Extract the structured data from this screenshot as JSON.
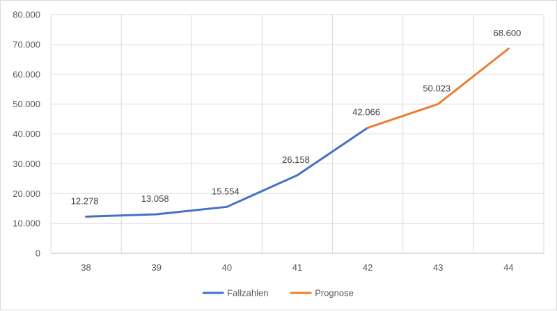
{
  "chart_data": {
    "type": "line",
    "categories": [
      "38",
      "39",
      "40",
      "41",
      "42",
      "43",
      "44"
    ],
    "series": [
      {
        "name": "Fallzahlen",
        "color": "#4472c4",
        "values": [
          12278,
          13058,
          15554,
          26158,
          42066,
          null,
          null
        ],
        "labels": [
          "12.278",
          "13.058",
          "15.554",
          "26.158",
          "42.066",
          "",
          ""
        ]
      },
      {
        "name": "Prognose",
        "color": "#ed7d31",
        "values": [
          null,
          null,
          null,
          null,
          42066,
          50023,
          68600
        ],
        "labels": [
          "",
          "",
          "",
          "",
          "",
          "50.023",
          "68.600"
        ]
      }
    ],
    "yticks": [
      "0",
      "10.000",
      "20.000",
      "30.000",
      "40.000",
      "50.000",
      "60.000",
      "70.000",
      "80.000"
    ],
    "ylim": [
      0,
      80000
    ],
    "grid": true,
    "legend": "bottom-center",
    "title": "",
    "xlabel": "",
    "ylabel": ""
  }
}
